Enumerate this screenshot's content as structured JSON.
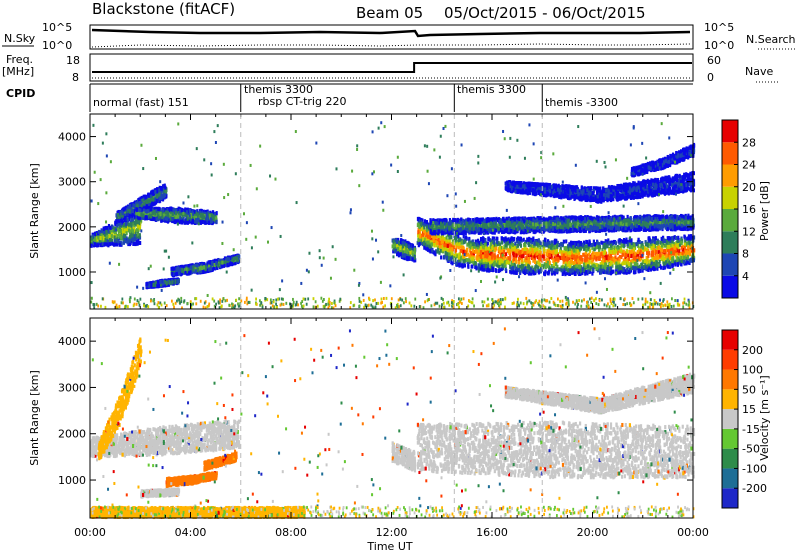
{
  "header": {
    "station": "Blackstone (fitACF)",
    "beam": "Beam 05",
    "date_range": "05/Oct/2015 - 06/Oct/2015"
  },
  "top_panels": {
    "nsky_label": "N.Sky",
    "nsky_ticks": [
      "10^5",
      "10^0"
    ],
    "nsearch_label": "N.Search",
    "nsearch_ticks": [
      "10^5",
      "10^0"
    ],
    "freq_label": "Freq.",
    "freq_unit": "[MHz]",
    "freq_ticks": [
      "18",
      "8"
    ],
    "nave_label": "Nave",
    "nave_ticks": [
      "60",
      "0"
    ],
    "cpid_label": "CPID",
    "cpid_segments": [
      {
        "name": "normal (fast) 151",
        "start_h": 0,
        "end_h": 6
      },
      {
        "name": "themis 3300",
        "start_h": 6,
        "end_h": 14.5
      },
      {
        "name": "rbsp CT-trig 220",
        "start_h": 6.1,
        "end_h": 7.3
      },
      {
        "name": "themis 3300",
        "start_h": 14.5,
        "end_h": 18
      },
      {
        "name": "themis -3300",
        "start_h": 18,
        "end_h": 24
      }
    ],
    "freq_step_h": 12.9
  },
  "chart_data": [
    {
      "type": "heatmap",
      "name": "power",
      "ylabel": "Slant Range [km]",
      "y_ticks": [
        "1000",
        "2000",
        "3000",
        "4000"
      ],
      "ylim": [
        180,
        4500
      ],
      "xlim": [
        0,
        24
      ],
      "colorbar_label": "Power [dB]",
      "colorbar_ticks": [
        "4",
        "8",
        "12",
        "16",
        "20",
        "24",
        "28"
      ],
      "colors": [
        "#0a0ae6",
        "#1e46b4",
        "#2e7d5a",
        "#5aaa3c",
        "#c8d200",
        "#ff9c00",
        "#ff5a00",
        "#e60000"
      ],
      "bands": [
        {
          "start_h": 0.0,
          "end_h": 2.0,
          "center_km": [
            1700,
            1850,
            2000
          ],
          "width_km": [
            120,
            260,
            380
          ],
          "peak": 0.55
        },
        {
          "start_h": 1.0,
          "end_h": 3.0,
          "center_km": [
            2200,
            2500,
            2800
          ],
          "width_km": [
            100,
            140,
            160
          ],
          "peak": 0.35
        },
        {
          "start_h": 1.8,
          "end_h": 5.0,
          "center_km": [
            2300,
            2250,
            2200
          ],
          "width_km": [
            100,
            160,
            120
          ],
          "peak": 0.45
        },
        {
          "start_h": 3.2,
          "end_h": 5.9,
          "center_km": [
            1000,
            1100,
            1300
          ],
          "width_km": [
            80,
            100,
            80
          ],
          "peak": 0.4
        },
        {
          "start_h": 2.2,
          "end_h": 3.5,
          "center_km": [
            700,
            750,
            800
          ],
          "width_km": [
            40,
            60,
            40
          ],
          "peak": 0.35
        },
        {
          "start_h": 12.0,
          "end_h": 12.9,
          "center_km": [
            1600,
            1500,
            1400
          ],
          "width_km": [
            150,
            200,
            150
          ],
          "peak": 0.55
        },
        {
          "start_h": 13.0,
          "end_h": 16.0,
          "center_km": [
            1900,
            1500,
            1300
          ],
          "width_km": [
            300,
            350,
            300
          ],
          "peak": 0.85
        },
        {
          "start_h": 15.5,
          "end_h": 19.5,
          "center_km": [
            1400,
            1350,
            1300
          ],
          "width_km": [
            350,
            400,
            350
          ],
          "peak": 0.92
        },
        {
          "start_h": 19.0,
          "end_h": 24.0,
          "center_km": [
            1300,
            1350,
            1500
          ],
          "width_km": [
            350,
            380,
            300
          ],
          "peak": 0.9
        },
        {
          "start_h": 13.5,
          "end_h": 24.0,
          "center_km": [
            2000,
            2050,
            2100
          ],
          "width_km": [
            150,
            160,
            150
          ],
          "peak": 0.4
        },
        {
          "start_h": 16.5,
          "end_h": 24.0,
          "center_km": [
            2900,
            2700,
            3000
          ],
          "width_km": [
            100,
            150,
            200
          ],
          "peak": 0.18
        },
        {
          "start_h": 21.5,
          "end_h": 24.0,
          "center_km": [
            3200,
            3400,
            3700
          ],
          "width_km": [
            80,
            100,
            120
          ],
          "peak": 0.18
        }
      ]
    },
    {
      "type": "heatmap",
      "name": "velocity",
      "ylabel": "Slant Range [km]",
      "y_ticks": [
        "1000",
        "2000",
        "3000",
        "4000"
      ],
      "ylim": [
        180,
        4500
      ],
      "xlim": [
        0,
        24
      ],
      "x_ticks": [
        "00:00",
        "04:00",
        "08:00",
        "12:00",
        "16:00",
        "20:00",
        "00:00"
      ],
      "xlabel": "Time UT",
      "colorbar_label": "Velocity [m s⁻¹]",
      "colorbar_ticks": [
        "200",
        "100",
        "50",
        "15",
        "-15",
        "-50",
        "-100",
        "-200"
      ],
      "colors": [
        "#1e28c8",
        "#1e6e96",
        "#2e8c4a",
        "#64c832",
        "#c8c8c8",
        "#ffb400",
        "#ff7800",
        "#ff3c00",
        "#e60000"
      ],
      "bands": [
        {
          "start_h": 0.0,
          "end_h": 5.9,
          "center_km": [
            1700,
            1850,
            2000
          ],
          "width_km": [
            200,
            300,
            300
          ],
          "color": "#c8c8c8"
        },
        {
          "start_h": 0.3,
          "end_h": 2.0,
          "center_km": [
            1600,
            2500,
            3800
          ],
          "width_km": [
            200,
            300,
            300
          ],
          "color": "#ffb400"
        },
        {
          "start_h": 4.5,
          "end_h": 5.8,
          "center_km": [
            1300,
            1400,
            1500
          ],
          "width_km": [
            80,
            80,
            80
          ],
          "color": "#ff7800"
        },
        {
          "start_h": 3.0,
          "end_h": 5.0,
          "center_km": [
            950,
            1000,
            1100
          ],
          "width_km": [
            80,
            80,
            60
          ],
          "color": "#ff7800"
        },
        {
          "start_h": 2.0,
          "end_h": 3.5,
          "center_km": [
            700,
            720,
            740
          ],
          "width_km": [
            60,
            60,
            60
          ],
          "color": "#c8c8c8"
        },
        {
          "start_h": 12.0,
          "end_h": 12.9,
          "center_km": [
            1600,
            1500,
            1400
          ],
          "width_km": [
            200,
            200,
            200
          ],
          "color": "#c8c8c8"
        },
        {
          "start_h": 13.0,
          "end_h": 24.0,
          "center_km": [
            1700,
            1650,
            1600
          ],
          "width_km": [
            500,
            600,
            550
          ],
          "color": "#c8c8c8"
        },
        {
          "start_h": 16.5,
          "end_h": 24.0,
          "center_km": [
            2900,
            2600,
            3100
          ],
          "width_km": [
            100,
            150,
            200
          ],
          "color": "#c8c8c8"
        },
        {
          "start_h": 0.0,
          "end_h": 8.5,
          "center_km": [
            300,
            300,
            300
          ],
          "width_km": [
            100,
            100,
            100
          ],
          "color": "#ffb400"
        }
      ]
    }
  ]
}
